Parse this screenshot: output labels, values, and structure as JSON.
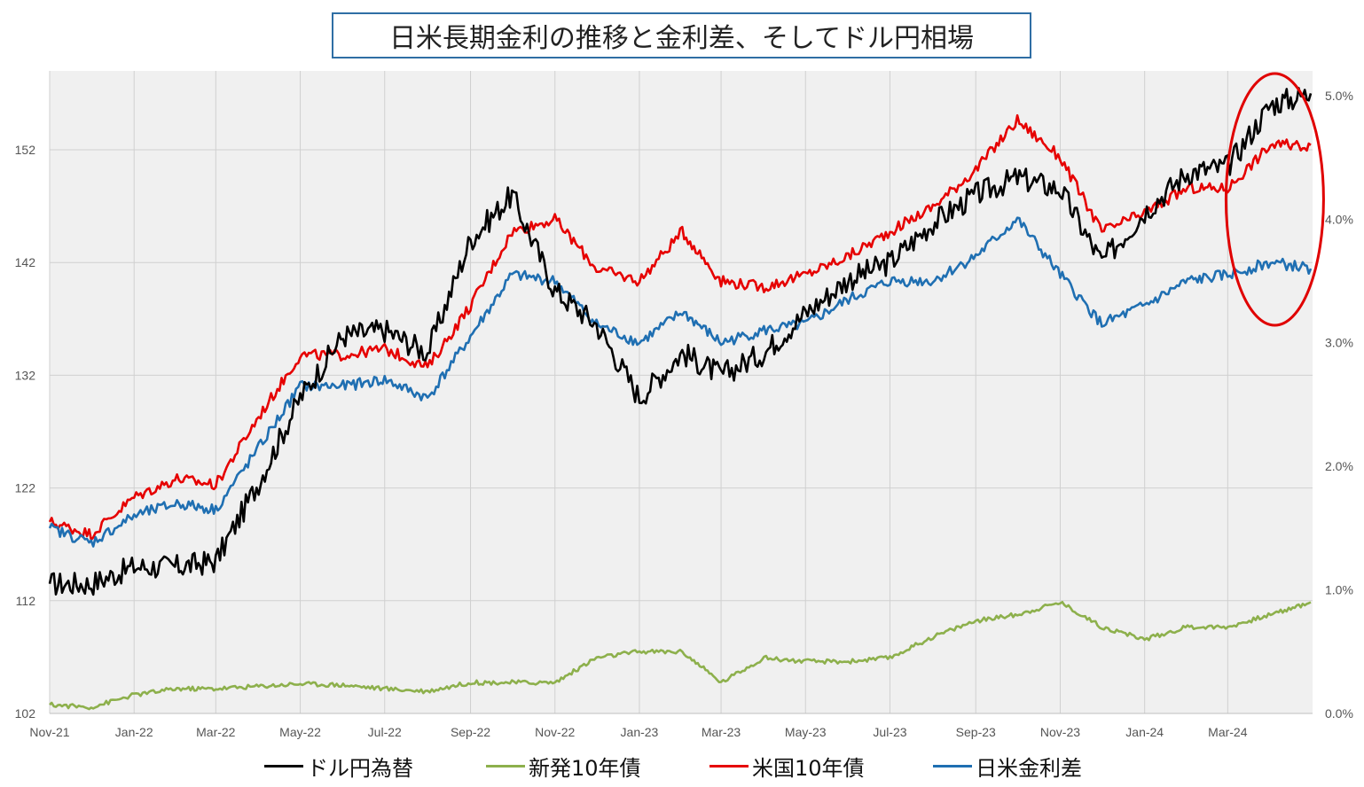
{
  "chart_data": {
    "type": "line",
    "title": "日米長期金利の推移と金利差、そしてドル円相場",
    "x_tick_labels": [
      "Nov-21",
      "Jan-22",
      "Mar-22",
      "May-22",
      "Jul-22",
      "Sep-22",
      "Nov-22",
      "Jan-23",
      "Mar-23",
      "May-23",
      "Jul-23",
      "Sep-23",
      "Nov-23",
      "Jan-24",
      "Mar-24"
    ],
    "x": [
      "2021-11-01",
      "2021-12-01",
      "2022-01-01",
      "2022-02-01",
      "2022-03-01",
      "2022-04-01",
      "2022-05-01",
      "2022-06-01",
      "2022-07-01",
      "2022-08-01",
      "2022-09-01",
      "2022-10-01",
      "2022-11-01",
      "2022-12-01",
      "2023-01-01",
      "2023-02-01",
      "2023-03-01",
      "2023-04-01",
      "2023-05-01",
      "2023-06-01",
      "2023-07-01",
      "2023-08-01",
      "2023-09-01",
      "2023-10-01",
      "2023-11-01",
      "2023-12-01",
      "2024-01-01",
      "2024-02-01",
      "2024-03-01",
      "2024-04-01",
      "2024-04-30"
    ],
    "y_left": {
      "ticks": [
        102,
        112,
        122,
        132,
        142,
        152
      ],
      "ylim": [
        102,
        159
      ]
    },
    "y_right": {
      "ticks": [
        "0.0%",
        "1.0%",
        "2.0%",
        "3.0%",
        "4.0%",
        "5.0%"
      ],
      "ylim": [
        0.0,
        5.2
      ]
    },
    "grid": true,
    "legend_position": "bottom",
    "series": [
      {
        "name": "ドル円為替",
        "axis": "left",
        "color": "#000000",
        "values": [
          113.5,
          113.5,
          115.0,
          115.0,
          115.5,
          122.5,
          130.0,
          135.5,
          136.0,
          134.0,
          144.0,
          148.0,
          139.5,
          136.5,
          130.0,
          134.0,
          132.0,
          134.0,
          137.5,
          140.5,
          142.0,
          145.5,
          148.0,
          149.5,
          148.5,
          142.0,
          146.5,
          150.0,
          150.5,
          156.0,
          157.0
        ]
      },
      {
        "name": "米国10年債",
        "axis": "right",
        "color": "#e60000",
        "values": [
          1.55,
          1.45,
          1.75,
          1.9,
          1.85,
          2.4,
          2.9,
          2.9,
          2.95,
          2.8,
          3.3,
          3.9,
          4.0,
          3.6,
          3.5,
          3.9,
          3.5,
          3.45,
          3.55,
          3.7,
          3.9,
          4.1,
          4.4,
          4.8,
          4.5,
          3.9,
          4.05,
          4.25,
          4.25,
          4.6,
          4.6
        ]
      },
      {
        "name": "日米金利差",
        "axis": "right",
        "color": "#1f6fb2",
        "values": [
          1.5,
          1.38,
          1.6,
          1.7,
          1.65,
          2.15,
          2.65,
          2.65,
          2.7,
          2.55,
          3.05,
          3.55,
          3.5,
          3.15,
          3.0,
          3.25,
          3.0,
          3.1,
          3.15,
          3.35,
          3.5,
          3.5,
          3.7,
          4.0,
          3.55,
          3.15,
          3.3,
          3.5,
          3.55,
          3.65,
          3.6
        ]
      },
      {
        "name": "新発10年債",
        "axis": "right",
        "color": "#8db04c",
        "values": [
          0.07,
          0.05,
          0.15,
          0.2,
          0.2,
          0.22,
          0.24,
          0.23,
          0.2,
          0.18,
          0.25,
          0.25,
          0.25,
          0.45,
          0.5,
          0.5,
          0.25,
          0.45,
          0.42,
          0.42,
          0.45,
          0.62,
          0.75,
          0.8,
          0.9,
          0.7,
          0.6,
          0.7,
          0.7,
          0.8,
          0.9
        ]
      }
    ]
  },
  "annotation": {
    "shape": "ellipse",
    "color": "#e00000"
  }
}
